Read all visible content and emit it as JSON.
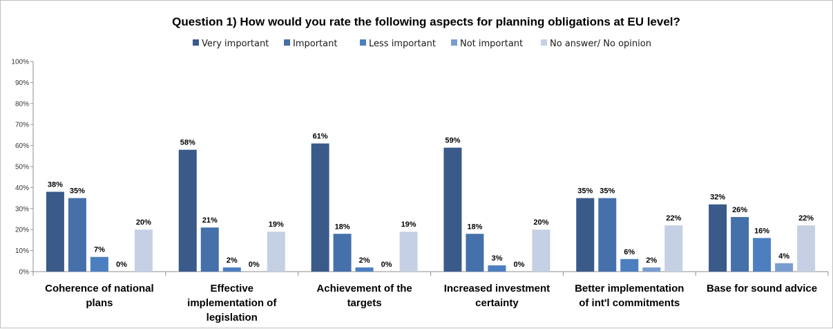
{
  "chart_data": {
    "type": "bar",
    "title": "Question 1) How would you rate the following aspects for planning obligations at EU level?",
    "categories": [
      [
        "Coherence of national",
        "plans"
      ],
      [
        "Effective",
        "implementation of",
        "legislation"
      ],
      [
        "Achievement of the",
        "targets"
      ],
      [
        "Increased investment",
        "certainty"
      ],
      [
        "Better implementation",
        "of int'l commitments"
      ],
      [
        "Base for sound advice"
      ]
    ],
    "series": [
      {
        "name": "Very important",
        "color": "#3a5a8a",
        "values": [
          38,
          58,
          61,
          59,
          35,
          32
        ],
        "labels": [
          "38%",
          "58%",
          "61%",
          "59%",
          "35%",
          "32%"
        ]
      },
      {
        "name": "Important",
        "color": "#4570aa",
        "values": [
          35,
          21,
          18,
          18,
          35,
          26
        ],
        "labels": [
          "35%",
          "21%",
          "18%",
          "18%",
          "35%",
          "26%"
        ]
      },
      {
        "name": "Less important",
        "color": "#4d7fc0",
        "values": [
          7,
          2,
          2,
          3,
          6,
          16
        ],
        "labels": [
          "7%",
          "2%",
          "2%",
          "3%",
          "6%",
          "16%"
        ]
      },
      {
        "name": "Not important",
        "color": "#7a9dd0",
        "values": [
          0,
          0,
          0,
          0,
          2,
          4
        ],
        "labels": [
          "0%",
          "0%",
          "0%",
          "0%",
          "2%",
          "4%"
        ]
      },
      {
        "name": "No answer/ No opinion",
        "color": "#c5d0e4",
        "values": [
          20,
          19,
          19,
          20,
          22,
          22
        ],
        "labels": [
          "20%",
          "19%",
          "19%",
          "20%",
          "22%",
          "22%"
        ]
      }
    ],
    "yticks": [
      "0%",
      "10%",
      "20%",
      "30%",
      "40%",
      "50%",
      "60%",
      "70%",
      "80%",
      "90%",
      "100%"
    ],
    "ylim": [
      0,
      100
    ],
    "grid": false,
    "legend": "top-center"
  }
}
